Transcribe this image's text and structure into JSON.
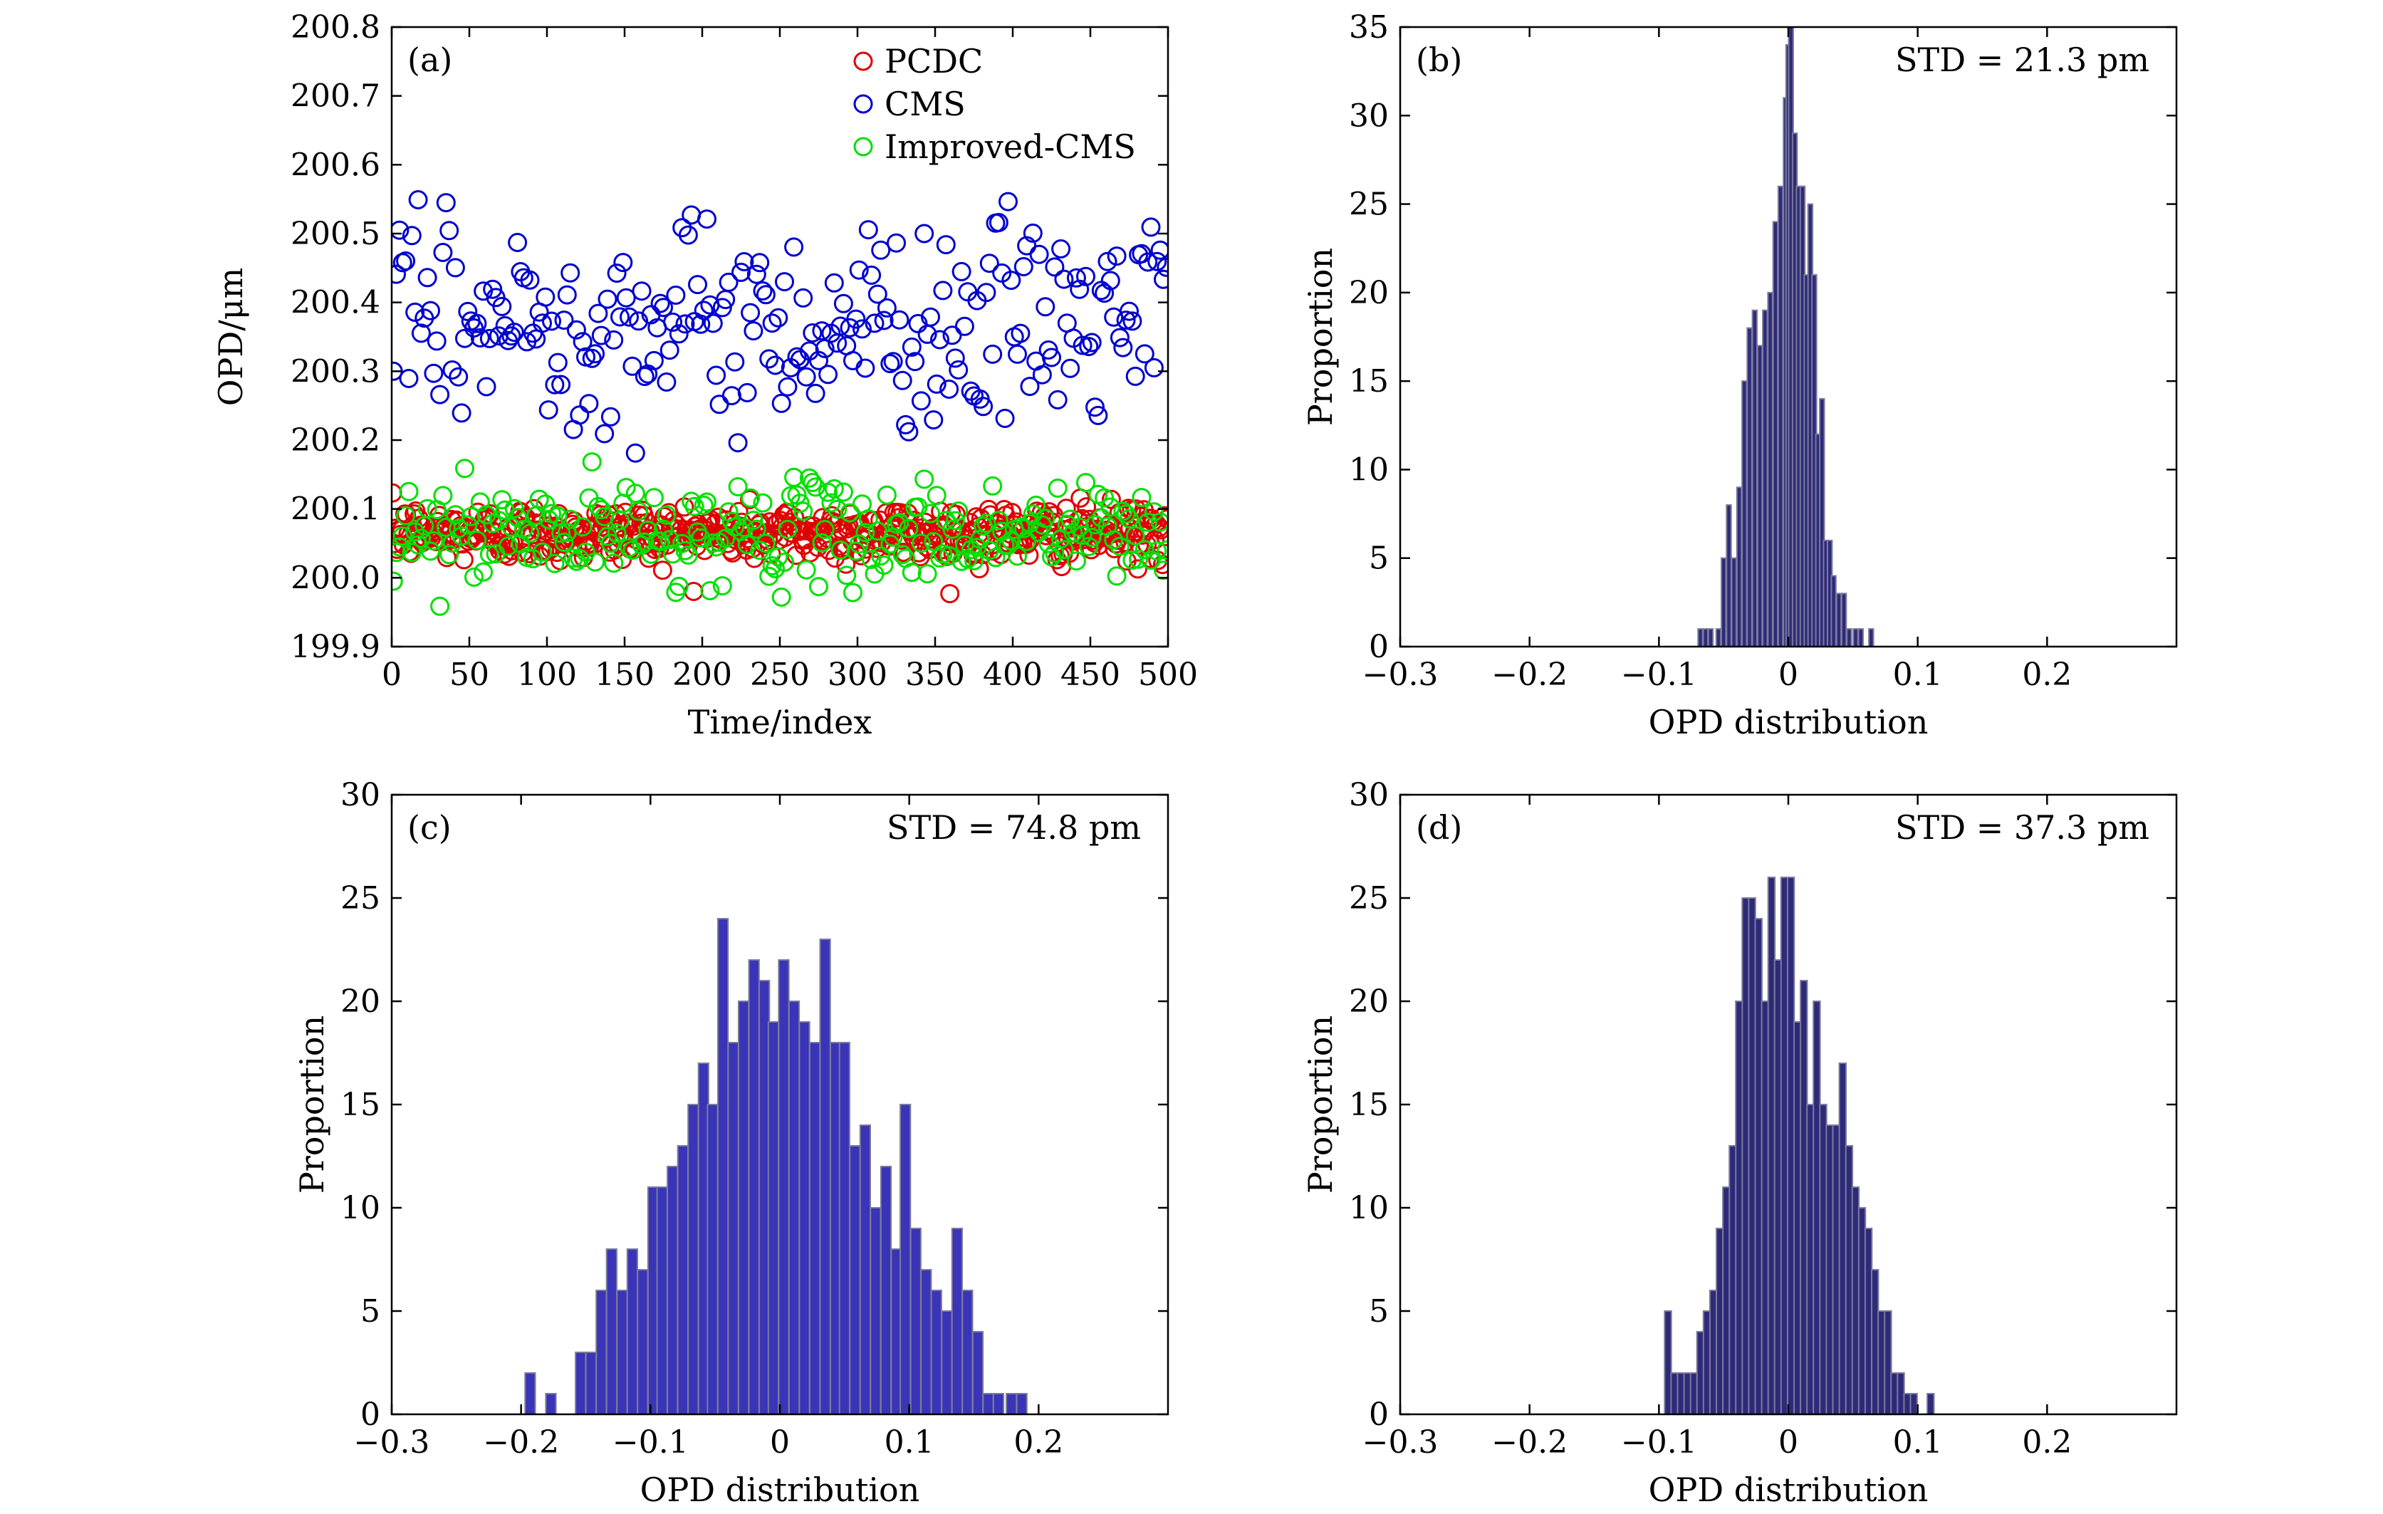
{
  "chart_data": [
    {
      "id": "a",
      "type": "scatter",
      "panel_label": "(a)",
      "title": "",
      "xlabel": "Time/index",
      "ylabel": "OPD/μm",
      "xlim": [
        0,
        500
      ],
      "ylim": [
        199.9,
        200.8
      ],
      "xticks": [
        "0",
        "50",
        "100",
        "150",
        "200",
        "250",
        "300",
        "350",
        "400",
        "450",
        "500"
      ],
      "yticks": [
        "199.9",
        "200.0",
        "200.1",
        "200.2",
        "200.3",
        "200.4",
        "200.5",
        "200.6",
        "200.7",
        "200.8"
      ],
      "legend_position": "top-right",
      "marker": "open-circle",
      "series": [
        {
          "name": "PCDC",
          "color": "#e00000",
          "n_points": 500,
          "mean": 200.065,
          "std": 0.021
        },
        {
          "name": "CMS",
          "color": "#0000d0",
          "n_points": 250,
          "mean": 200.37,
          "std": 0.075
        },
        {
          "name": "Improved-CMS",
          "color": "#00e000",
          "n_points": 250,
          "mean": 200.065,
          "std": 0.037
        }
      ]
    },
    {
      "id": "b",
      "type": "bar",
      "panel_label": "(b)",
      "annotation": "STD = 21.3 pm",
      "xlabel": "OPD distribution",
      "ylabel": "Proportion",
      "xlim": [
        -0.3,
        0.3
      ],
      "ylim": [
        0,
        35
      ],
      "xticks": [
        "−0.3",
        "−0.2",
        "−0.1",
        "0",
        "0.1",
        "0.2"
      ],
      "yticks": [
        "0",
        "5",
        "10",
        "15",
        "20",
        "25",
        "30",
        "35"
      ],
      "bar_color": "#2e2a7a",
      "bin_width": 0.0035,
      "bins": [
        [
          -0.068,
          1
        ],
        [
          -0.064,
          1
        ],
        [
          -0.06,
          1
        ],
        [
          -0.054,
          1
        ],
        [
          -0.05,
          5
        ],
        [
          -0.046,
          8
        ],
        [
          -0.042,
          5
        ],
        [
          -0.038,
          9
        ],
        [
          -0.034,
          15
        ],
        [
          -0.03,
          18
        ],
        [
          -0.026,
          19
        ],
        [
          -0.022,
          17
        ],
        [
          -0.018,
          19
        ],
        [
          -0.014,
          20
        ],
        [
          -0.01,
          24
        ],
        [
          -0.006,
          26
        ],
        [
          -0.002,
          31
        ],
        [
          0.0,
          34
        ],
        [
          0.002,
          35
        ],
        [
          0.005,
          29
        ],
        [
          0.008,
          26
        ],
        [
          0.011,
          26
        ],
        [
          0.014,
          21
        ],
        [
          0.017,
          25
        ],
        [
          0.02,
          21
        ],
        [
          0.023,
          12
        ],
        [
          0.026,
          14
        ],
        [
          0.029,
          6
        ],
        [
          0.032,
          6
        ],
        [
          0.035,
          4
        ],
        [
          0.039,
          3
        ],
        [
          0.043,
          3
        ],
        [
          0.047,
          1
        ],
        [
          0.052,
          1
        ],
        [
          0.056,
          1
        ],
        [
          0.064,
          1
        ]
      ]
    },
    {
      "id": "c",
      "type": "bar",
      "panel_label": "(c)",
      "annotation": "STD = 74.8 pm",
      "xlabel": "OPD distribution",
      "ylabel": "Proportion",
      "xlim": [
        -0.3,
        0.3
      ],
      "ylim": [
        0,
        30
      ],
      "xticks": [
        "−0.3",
        "−0.2",
        "−0.1",
        "0",
        "0.1",
        "0.2"
      ],
      "yticks": [
        "0",
        "5",
        "10",
        "15",
        "20",
        "25",
        "30"
      ],
      "bar_color": "#3a34b8",
      "bin_width": 0.0078,
      "bins": [
        [
          -0.193,
          2
        ],
        [
          -0.177,
          1
        ],
        [
          -0.154,
          3
        ],
        [
          -0.146,
          3
        ],
        [
          -0.138,
          6
        ],
        [
          -0.13,
          8
        ],
        [
          -0.122,
          6
        ],
        [
          -0.114,
          8
        ],
        [
          -0.106,
          7
        ],
        [
          -0.098,
          11
        ],
        [
          -0.091,
          11
        ],
        [
          -0.083,
          12
        ],
        [
          -0.075,
          13
        ],
        [
          -0.067,
          15
        ],
        [
          -0.059,
          17
        ],
        [
          -0.052,
          15
        ],
        [
          -0.044,
          24
        ],
        [
          -0.036,
          18
        ],
        [
          -0.028,
          20
        ],
        [
          -0.02,
          22
        ],
        [
          -0.012,
          21
        ],
        [
          -0.005,
          19
        ],
        [
          0.003,
          22
        ],
        [
          0.011,
          20
        ],
        [
          0.019,
          19
        ],
        [
          0.027,
          18
        ],
        [
          0.035,
          23
        ],
        [
          0.043,
          18
        ],
        [
          0.05,
          18
        ],
        [
          0.058,
          13
        ],
        [
          0.066,
          14
        ],
        [
          0.074,
          10
        ],
        [
          0.082,
          12
        ],
        [
          0.09,
          8
        ],
        [
          0.097,
          15
        ],
        [
          0.105,
          9
        ],
        [
          0.113,
          7
        ],
        [
          0.121,
          6
        ],
        [
          0.129,
          5
        ],
        [
          0.137,
          9
        ],
        [
          0.145,
          6
        ],
        [
          0.153,
          4
        ],
        [
          0.161,
          1
        ],
        [
          0.169,
          1
        ],
        [
          0.179,
          1
        ],
        [
          0.187,
          1
        ]
      ]
    },
    {
      "id": "d",
      "type": "bar",
      "panel_label": "(d)",
      "annotation": "STD = 37.3 pm",
      "xlabel": "OPD distribution",
      "ylabel": "Proportion",
      "xlim": [
        -0.3,
        0.3
      ],
      "ylim": [
        0,
        30
      ],
      "xticks": [
        "−0.3",
        "−0.2",
        "−0.1",
        "0",
        "0.1",
        "0.2"
      ],
      "yticks": [
        "0",
        "5",
        "10",
        "15",
        "20",
        "25",
        "30"
      ],
      "bar_color": "#2e2a7a",
      "bin_width": 0.0052,
      "bins": [
        [
          -0.093,
          5
        ],
        [
          -0.088,
          2
        ],
        [
          -0.083,
          2
        ],
        [
          -0.078,
          2
        ],
        [
          -0.073,
          2
        ],
        [
          -0.068,
          4
        ],
        [
          -0.063,
          5
        ],
        [
          -0.058,
          6
        ],
        [
          -0.053,
          9
        ],
        [
          -0.048,
          11
        ],
        [
          -0.043,
          13
        ],
        [
          -0.038,
          20
        ],
        [
          -0.033,
          25
        ],
        [
          -0.028,
          25
        ],
        [
          -0.023,
          24
        ],
        [
          -0.018,
          20
        ],
        [
          -0.013,
          26
        ],
        [
          -0.008,
          22
        ],
        [
          -0.003,
          26
        ],
        [
          0.002,
          26
        ],
        [
          0.007,
          19
        ],
        [
          0.012,
          21
        ],
        [
          0.017,
          15
        ],
        [
          0.022,
          20
        ],
        [
          0.027,
          15
        ],
        [
          0.032,
          14
        ],
        [
          0.037,
          14
        ],
        [
          0.042,
          17
        ],
        [
          0.047,
          13
        ],
        [
          0.052,
          11
        ],
        [
          0.057,
          10
        ],
        [
          0.062,
          9
        ],
        [
          0.067,
          7
        ],
        [
          0.072,
          5
        ],
        [
          0.077,
          5
        ],
        [
          0.082,
          2
        ],
        [
          0.087,
          2
        ],
        [
          0.092,
          1
        ],
        [
          0.097,
          1
        ],
        [
          0.11,
          1
        ]
      ]
    }
  ]
}
